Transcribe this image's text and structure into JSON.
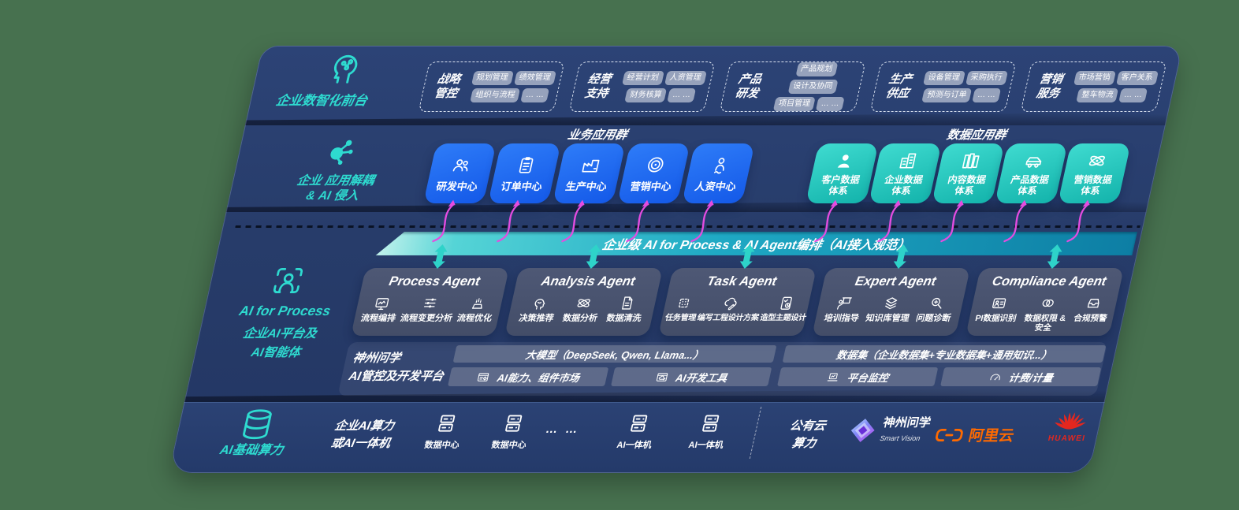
{
  "colors": {
    "canvas_bg": "#47714F",
    "panel_navy": "#273C6A",
    "accent_teal": "#2EDBD0",
    "app_blue": "#1E6BF3",
    "data_teal": "#22C9BE",
    "orchestration_teal": "#1FA9C0",
    "arrow_magenta": "#E44CE0",
    "aliyun_orange": "#FF6A00",
    "huawei_red": "#E4271F"
  },
  "front_office": {
    "label": "企业数智化前台",
    "icon": "head-circuit-icon",
    "groups": [
      {
        "title1": "战略",
        "title2": "管控",
        "chips": [
          "规划管理",
          "绩效管理",
          "组织与流程",
          "… …"
        ]
      },
      {
        "title1": "经营",
        "title2": "支持",
        "chips": [
          "经营计划",
          "人资管理",
          "财务核算",
          "… …"
        ]
      },
      {
        "title1": "产品",
        "title2": "研发",
        "chips": [
          "产品规划",
          "设计及协同",
          "项目管理",
          "… …"
        ]
      },
      {
        "title1": "生产",
        "title2": "供应",
        "chips": [
          "设备管理",
          "采购执行",
          "预测与订单",
          "… …"
        ]
      },
      {
        "title1": "营销",
        "title2": "服务",
        "chips": [
          "市场营销",
          "客户关系",
          "整车物流",
          "… …"
        ]
      }
    ]
  },
  "app_layer": {
    "label1": "企业 应用解耦",
    "label2": "& AI 侵入",
    "icon": "molecule-icon",
    "business_group_title": "业务应用群",
    "business_apps": [
      {
        "label": "研发中心",
        "icon": "team-icon"
      },
      {
        "label": "订单中心",
        "icon": "clipboard-icon"
      },
      {
        "label": "生产中心",
        "icon": "factory-icon"
      },
      {
        "label": "营销中心",
        "icon": "target-icon"
      },
      {
        "label": "人资中心",
        "icon": "people-wave-icon"
      }
    ],
    "data_group_title": "数据应用群",
    "data_apps": [
      {
        "label1": "客户数据",
        "label2": "体系",
        "icon": "user-icon"
      },
      {
        "label1": "企业数据",
        "label2": "体系",
        "icon": "building-icon"
      },
      {
        "label1": "内容数据",
        "label2": "体系",
        "icon": "files-icon"
      },
      {
        "label1": "产品数据",
        "label2": "体系",
        "icon": "car-icon"
      },
      {
        "label1": "营销数据",
        "label2": "体系",
        "icon": "atom-icon"
      }
    ]
  },
  "orchestration": {
    "label": "企业级 AI for Process & AI Agent编排（AI接入规范）"
  },
  "agent_layer": {
    "label_en": "AI for Process",
    "label_cn1": "企业AI平台及",
    "label_cn2": "AI智能体",
    "icon": "person-scan-icon",
    "agents": [
      {
        "title": "Process Agent",
        "items": [
          {
            "label": "流程编排",
            "icon": "flow-monitor-icon"
          },
          {
            "label": "流程变更分析",
            "icon": "sliders-icon"
          },
          {
            "label": "流程优化",
            "icon": "stage-icon"
          }
        ]
      },
      {
        "title": "Analysis Agent",
        "items": [
          {
            "label": "决策推荐",
            "icon": "head-chat-icon"
          },
          {
            "label": "数据分析",
            "icon": "atom-icon"
          },
          {
            "label": "数据清洗",
            "icon": "doc-clean-icon"
          }
        ]
      },
      {
        "title": "Task Agent",
        "items": [
          {
            "label": "任务管理",
            "icon": "task-grid-icon"
          },
          {
            "label": "编写工程设计方案",
            "icon": "cloud-edit-icon"
          },
          {
            "label": "造型主题设计",
            "icon": "tablet-check-icon"
          }
        ]
      },
      {
        "title": "Expert Agent",
        "items": [
          {
            "label": "培训指导",
            "icon": "training-icon"
          },
          {
            "label": "知识库管理",
            "icon": "layers-icon"
          },
          {
            "label": "问题诊断",
            "icon": "diagnose-icon"
          }
        ]
      },
      {
        "title": "Compliance Agent",
        "items": [
          {
            "label": "PI数据识别",
            "icon": "id-card-icon"
          },
          {
            "label": "数据权限 & 安全",
            "icon": "link-rings-icon"
          },
          {
            "label": "合规预警",
            "icon": "inbox-alert-icon"
          }
        ]
      }
    ]
  },
  "platform": {
    "name1": "神州问学",
    "name2": "AI管控及开发平台",
    "model_bar": "大模型（DeepSeek, Qwen, Llama...）",
    "dataset_bar": "数据集（企业数据集+专业数据集+通用知识...）",
    "capability": "AI能力、组件市场",
    "devtools": "AI开发工具",
    "monitor": "平台监控",
    "billing": "计费/计量"
  },
  "infra": {
    "label": "AI基础算力",
    "icon": "database-icon",
    "compute1": "企业AI算力",
    "compute2": "或AI一体机",
    "dc_label": "数据中心",
    "ellipsis": "… …",
    "aio_label": "AI一体机",
    "cloud1": "公有云",
    "cloud2": "算力",
    "sv_name": "神州问学",
    "sv_sub": "Smart Vision",
    "aliyun": "阿里云",
    "huawei": "HUAWEI"
  }
}
